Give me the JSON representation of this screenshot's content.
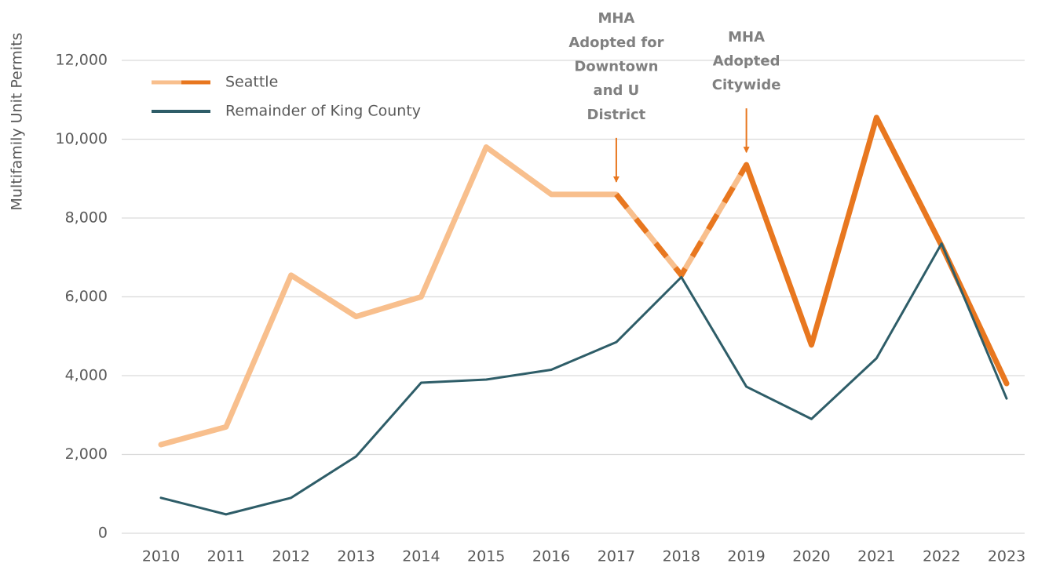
{
  "chart_data": {
    "type": "line",
    "y_label": "Multifamily Unit Permits",
    "categories": [
      "2010",
      "2011",
      "2012",
      "2013",
      "2014",
      "2015",
      "2016",
      "2017",
      "2018",
      "2019",
      "2020",
      "2021",
      "2022",
      "2023"
    ],
    "series": [
      {
        "name": "Seattle",
        "color": "#e8771f",
        "light_color": "#f8bf8d",
        "dashed_from": "2017",
        "solid_from": "2019",
        "values": [
          2250,
          2700,
          6550,
          5500,
          6000,
          9800,
          8600,
          8600,
          6550,
          9350,
          4780,
          10550,
          7300,
          3800
        ]
      },
      {
        "name": "Remainder of King County",
        "color": "#2e5d68",
        "values": [
          900,
          480,
          900,
          1950,
          3820,
          3900,
          4150,
          4850,
          6500,
          3720,
          2900,
          4440,
          7350,
          3420
        ]
      }
    ],
    "ylim": [
      0,
      12000
    ],
    "yticks": [
      0,
      {
        "value": 2000,
        "label": "2,000"
      },
      {
        "value": 4000,
        "label": "4,000"
      },
      {
        "value": 6000,
        "label": "6,000"
      },
      {
        "value": 8000,
        "label": "8,000"
      },
      {
        "value": 10000,
        "label": "10,000"
      },
      {
        "value": 12000,
        "label": "12,000"
      }
    ],
    "grid": true,
    "legend": "top-left",
    "annotations": [
      {
        "x": "2017",
        "lines": [
          "MHA",
          "Adopted for",
          "Downtown",
          "and U",
          "District"
        ],
        "color": "#e8771f"
      },
      {
        "x": "2019",
        "lines": [
          "MHA",
          "Adopted",
          "Citywide"
        ],
        "color": "#e8771f"
      }
    ]
  }
}
